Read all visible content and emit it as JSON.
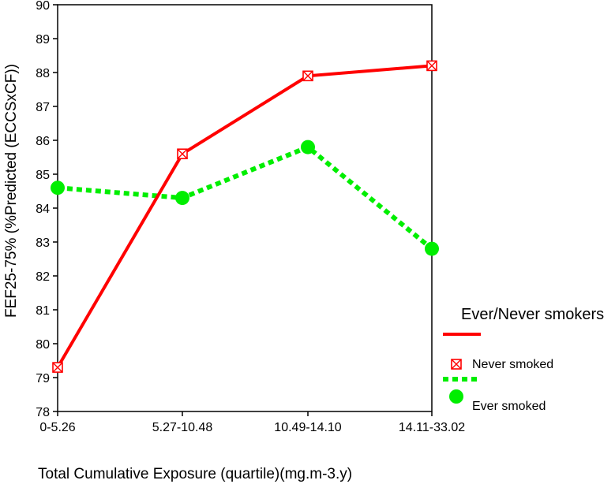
{
  "chart_data": {
    "type": "line",
    "categories": [
      "0-5.26",
      "5.27-10.48",
      "10.49-14.10",
      "14.11-33.02"
    ],
    "series": [
      {
        "name": "Never smoked",
        "values": [
          79.3,
          85.6,
          87.9,
          88.2
        ],
        "color": "#ff0000",
        "line_style": "solid",
        "marker": "square-x"
      },
      {
        "name": "Ever smoked",
        "values": [
          84.6,
          84.3,
          85.8,
          82.8
        ],
        "color": "#00ee00",
        "line_style": "dotted",
        "marker": "circle"
      }
    ],
    "xlabel": "Total Cumulative Exposure (quartile)(mg.m-3.y)",
    "ylabel": "FEF25-75% (%Predicted (ECCSxCF))",
    "ylim": [
      78,
      90
    ],
    "yticks": [
      78,
      79,
      80,
      81,
      82,
      83,
      84,
      85,
      86,
      87,
      88,
      89,
      90
    ],
    "grid": false,
    "legend": {
      "title": "Ever/Never smokers",
      "placement": "right"
    }
  }
}
